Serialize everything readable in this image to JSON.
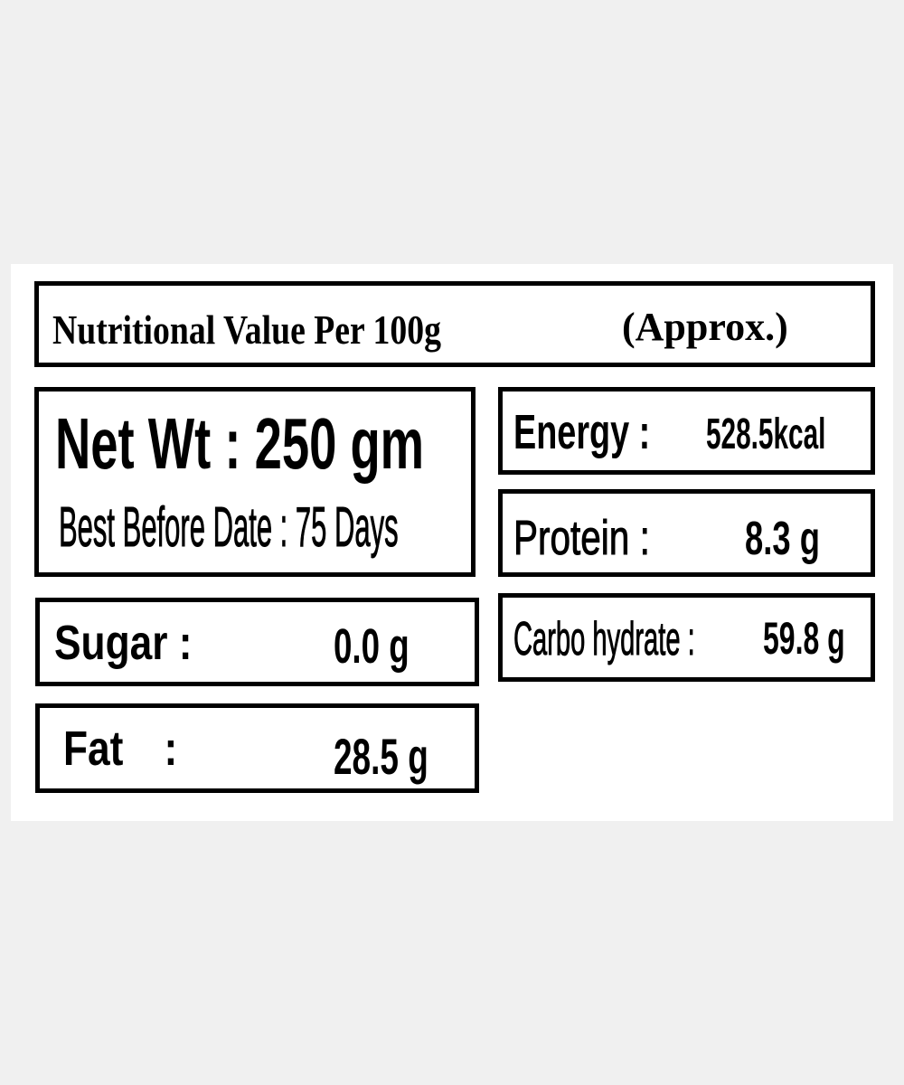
{
  "title": {
    "main": "Nutritional Value Per 100g",
    "approx": "(Approx.)"
  },
  "net_weight": {
    "label": "Net Wt : 250 gm",
    "best_before": "Best Before Date : 75 Days"
  },
  "nutrients": {
    "energy": {
      "label": "Energy :",
      "value": "528.5kcal"
    },
    "protein": {
      "label": "Protein :",
      "value": "8.3 g"
    },
    "carbohydrate": {
      "label": "Carbo hydrate :",
      "value": "59.8 g"
    },
    "sugar": {
      "label": "Sugar :",
      "value": "0.0 g"
    },
    "fat": {
      "label": "Fat :",
      "value": "28.5 g"
    }
  }
}
